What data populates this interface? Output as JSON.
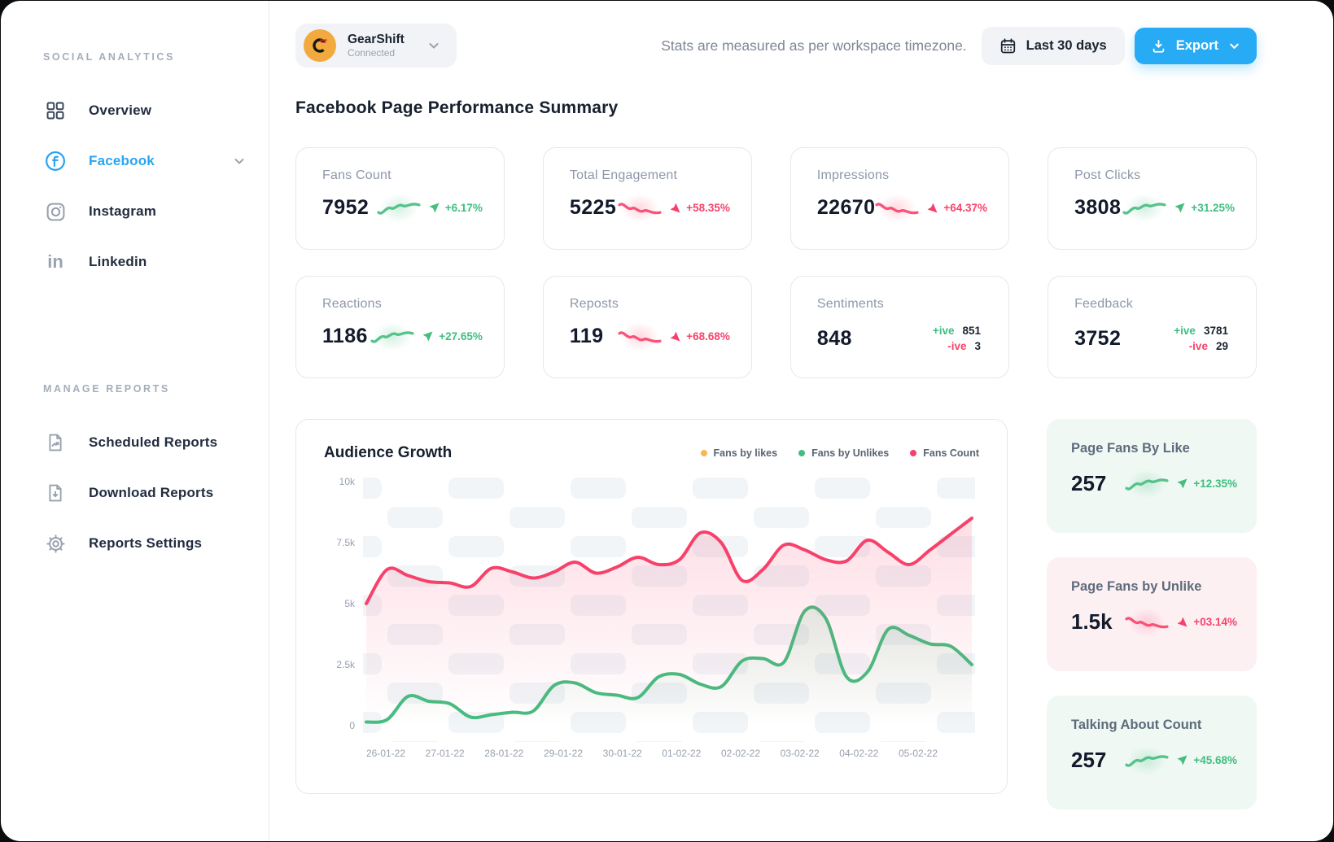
{
  "colors": {
    "accent_blue": "#27abf5",
    "facebook_blue": "#2aa5f1",
    "green": "#45bd80",
    "red": "#f8416a",
    "amber": "#f6b853"
  },
  "sidebar": {
    "section_analytics": "SOCIAL ANALYTICS",
    "nav": [
      {
        "label": "Overview",
        "icon": "grid-icon"
      },
      {
        "label": "Facebook",
        "icon": "facebook-icon",
        "active": true
      },
      {
        "label": "Instagram",
        "icon": "instagram-icon"
      },
      {
        "label": "Linkedin",
        "icon": "linkedin-icon"
      }
    ],
    "section_reports": "MANAGE REPORTS",
    "reports_nav": [
      {
        "label": "Scheduled Reports",
        "icon": "scheduled-report-icon"
      },
      {
        "label": "Download Reports",
        "icon": "download-report-icon"
      },
      {
        "label": "Reports Settings",
        "icon": "gear-icon"
      }
    ]
  },
  "topbar": {
    "workspace": {
      "name": "GearShift",
      "status": "Connected"
    },
    "timezone_note": "Stats are measured as per workspace timezone.",
    "date_range_label": "Last 30 days",
    "export_label": "Export"
  },
  "main": {
    "heading": "Facebook Page Performance Summary",
    "stat_cards": [
      {
        "label": "Fans Count",
        "value": "7952",
        "trend": "up",
        "change": "+6.17%"
      },
      {
        "label": "Total Engagement",
        "value": "5225",
        "trend": "down",
        "change": "+58.35%"
      },
      {
        "label": "Impressions",
        "value": "22670",
        "trend": "down",
        "change": "+64.37%"
      },
      {
        "label": "Post Clicks",
        "value": "3808",
        "trend": "up",
        "change": "+31.25%"
      },
      {
        "label": "Reactions",
        "value": "1186",
        "trend": "up",
        "change": "+27.65%"
      },
      {
        "label": "Reposts",
        "value": "119",
        "trend": "down",
        "change": "+68.68%"
      },
      {
        "label": "Sentiments",
        "value": "848",
        "positive_label": "+ive",
        "positive": "851",
        "negative_label": "-ive",
        "negative": "3"
      },
      {
        "label": "Feedback",
        "value": "3752",
        "positive_label": "+ive",
        "positive": "3781",
        "negative_label": "-ive",
        "negative": "29"
      }
    ],
    "side_cards": [
      {
        "label": "Page Fans By Like",
        "value": "257",
        "trend": "up",
        "change": "+12.35%",
        "tint": "green"
      },
      {
        "label": "Page Fans by Unlike",
        "value": "1.5k",
        "trend": "down",
        "change": "+03.14%",
        "tint": "pink"
      },
      {
        "label": "Talking About Count",
        "value": "257",
        "trend": "up",
        "change": "+45.68%",
        "tint": "green"
      }
    ]
  },
  "chart_data": {
    "type": "line",
    "title": "Audience Growth",
    "ylim": [
      0,
      10000
    ],
    "y_ticks": [
      "0",
      "2.5k",
      "5k",
      "7.5k",
      "10k"
    ],
    "x_ticks": [
      "26-01-22",
      "27-01-22",
      "28-01-22",
      "29-01-22",
      "30-01-22",
      "01-02-22",
      "02-02-22",
      "03-02-22",
      "04-02-22",
      "05-02-22"
    ],
    "legend_position": "top-right",
    "grid": "patterned-cells",
    "series": [
      {
        "name": "Fans by likes",
        "color": "#f6b853",
        "visible": false,
        "values": []
      },
      {
        "name": "Fans by Unlikes",
        "color": "#45bd80",
        "visible": true,
        "values": [
          150,
          250,
          1200,
          1000,
          900,
          350,
          450,
          550,
          600,
          1650,
          1750,
          1350,
          1250,
          1150,
          2000,
          2100,
          1700,
          1600,
          2650,
          2750,
          2600,
          4700,
          4400,
          2000,
          2200,
          3950,
          3700,
          3350,
          3250,
          2500
        ]
      },
      {
        "name": "Fans Count",
        "color": "#f8416a",
        "visible": true,
        "values": [
          5000,
          6400,
          6150,
          5900,
          5850,
          5700,
          6450,
          6300,
          6050,
          6300,
          6700,
          6250,
          6500,
          6900,
          6600,
          6800,
          7900,
          7500,
          5950,
          6400,
          7400,
          7200,
          6800,
          6750,
          7600,
          7100,
          6600,
          7200,
          7850,
          8500
        ]
      }
    ]
  }
}
